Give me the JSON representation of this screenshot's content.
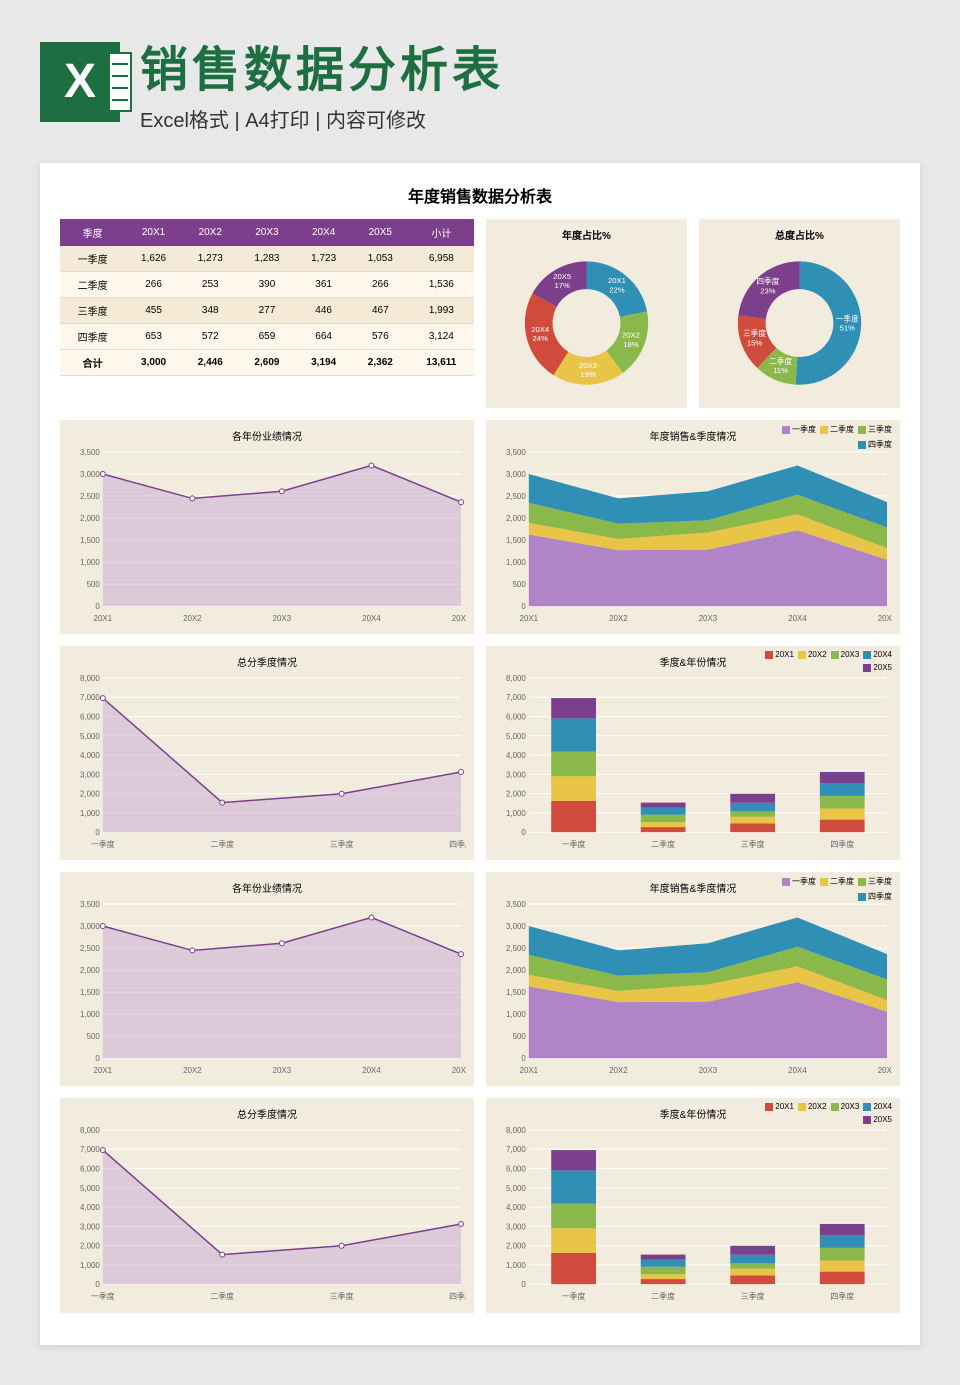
{
  "header": {
    "title": "销售数据分析表",
    "subtitle": "Excel格式 | A4打印 | 内容可修改"
  },
  "sheet_title": "年度销售数据分析表",
  "table": {
    "columns": [
      "季度",
      "20X1",
      "20X2",
      "20X3",
      "20X4",
      "20X5",
      "小计"
    ],
    "rows": [
      [
        "一季度",
        "1,626",
        "1,273",
        "1,283",
        "1,723",
        "1,053",
        "6,958"
      ],
      [
        "二季度",
        "266",
        "253",
        "390",
        "361",
        "266",
        "1,536"
      ],
      [
        "三季度",
        "455",
        "348",
        "277",
        "446",
        "467",
        "1,993"
      ],
      [
        "四季度",
        "653",
        "572",
        "659",
        "664",
        "576",
        "3,124"
      ]
    ],
    "total": [
      "合计",
      "3,000",
      "2,446",
      "2,609",
      "3,194",
      "2,362",
      "13,611"
    ]
  },
  "donut1": {
    "title": "年度占比%",
    "slices": [
      {
        "label": "20X1",
        "pct": 22,
        "color": "#2f8fb5"
      },
      {
        "label": "20X2",
        "pct": 18,
        "color": "#8bb84a"
      },
      {
        "label": "20X3",
        "pct": 19,
        "color": "#e8c547"
      },
      {
        "label": "20X4",
        "pct": 24,
        "color": "#d14b3d"
      },
      {
        "label": "20X5",
        "pct": 17,
        "color": "#7b3f8c"
      }
    ]
  },
  "donut2": {
    "title": "总度占比%",
    "slices": [
      {
        "label": "一季度",
        "pct": 51,
        "color": "#2f8fb5"
      },
      {
        "label": "二季度",
        "pct": 11,
        "color": "#8bb84a"
      },
      {
        "label": "三季度",
        "pct": 15,
        "color": "#d14b3d"
      },
      {
        "label": "四季度",
        "pct": 23,
        "color": "#7b3f8c"
      }
    ]
  },
  "area_year": {
    "title": "各年份业绩情况",
    "x": [
      "20X1",
      "20X2",
      "20X3",
      "20X4",
      "20X5"
    ],
    "y": [
      3000,
      2446,
      2609,
      3194,
      2362
    ],
    "ymax": 3500,
    "ystep": 500,
    "line": "#7b3f8c",
    "fill": "#c8a8d4"
  },
  "stacked_area": {
    "title": "年度销售&季度情况",
    "x": [
      "20X1",
      "20X2",
      "20X3",
      "20X4",
      "20X5"
    ],
    "ymax": 3500,
    "ystep": 500,
    "series": [
      {
        "name": "一季度",
        "color": "#b084c7",
        "vals": [
          1626,
          1273,
          1283,
          1723,
          1053
        ]
      },
      {
        "name": "二季度",
        "color": "#e8c547",
        "vals": [
          266,
          253,
          390,
          361,
          266
        ]
      },
      {
        "name": "三季度",
        "color": "#8bb84a",
        "vals": [
          455,
          348,
          277,
          446,
          467
        ]
      },
      {
        "name": "四季度",
        "color": "#2f8fb5",
        "vals": [
          653,
          572,
          659,
          664,
          576
        ]
      }
    ]
  },
  "area_quarter": {
    "title": "总分季度情况",
    "x": [
      "一季度",
      "二季度",
      "三季度",
      "四季度"
    ],
    "y": [
      6958,
      1536,
      1993,
      3124
    ],
    "ymax": 8000,
    "ystep": 1000,
    "line": "#7b3f8c",
    "fill": "#c8a8d4"
  },
  "stacked_bar": {
    "title": "季度&年份情况",
    "x": [
      "一季度",
      "二季度",
      "三季度",
      "四季度"
    ],
    "ymax": 8000,
    "ystep": 1000,
    "series": [
      {
        "name": "20X1",
        "color": "#d14b3d",
        "vals": [
          1626,
          266,
          455,
          653
        ]
      },
      {
        "name": "20X2",
        "color": "#e8c547",
        "vals": [
          1273,
          253,
          348,
          572
        ]
      },
      {
        "name": "20X3",
        "color": "#8bb84a",
        "vals": [
          1283,
          390,
          277,
          659
        ]
      },
      {
        "name": "20X4",
        "color": "#2f8fb5",
        "vals": [
          1723,
          361,
          446,
          664
        ]
      },
      {
        "name": "20X5",
        "color": "#7b3f8c",
        "vals": [
          1053,
          266,
          467,
          576
        ]
      }
    ]
  }
}
